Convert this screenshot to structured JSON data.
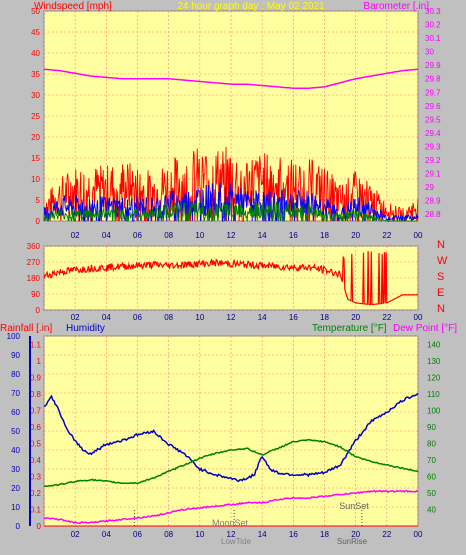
{
  "chart_data": [
    {
      "type": "line",
      "title": "24 hour graph day : May 02 2021",
      "left_axis_label": "Windspeed [mph]",
      "right_axis_label": "Barometer [.in]",
      "x_ticks": [
        "02",
        "04",
        "06",
        "08",
        "10",
        "12",
        "14",
        "16",
        "18",
        "20",
        "22",
        "00"
      ],
      "y_left_ticks": [
        "0",
        "5",
        "10",
        "15",
        "20",
        "25",
        "30",
        "35",
        "40",
        "45",
        "50"
      ],
      "y_left_lim": [
        0,
        50
      ],
      "y_right_ticks": [
        "28.8",
        "28.9",
        "29",
        "29.1",
        "29.2",
        "29.3",
        "29.4",
        "29.5",
        "29.6",
        "29.7",
        "29.8",
        "29.9",
        "30",
        "30.1",
        "30.2",
        "30.3"
      ],
      "y_right_lim": [
        28.75,
        30.3
      ],
      "grid": true,
      "series": [
        {
          "name": "Barometer",
          "axis": "right",
          "color": "#ff00ff",
          "x": [
            0,
            1,
            2,
            3,
            4,
            5,
            6,
            7,
            8,
            9,
            10,
            11,
            12,
            13,
            14,
            15,
            16,
            17,
            18,
            19,
            20,
            21,
            22,
            23,
            24
          ],
          "values": [
            29.87,
            29.86,
            29.84,
            29.82,
            29.81,
            29.8,
            29.8,
            29.8,
            29.8,
            29.79,
            29.78,
            29.77,
            29.76,
            29.76,
            29.75,
            29.74,
            29.73,
            29.73,
            29.74,
            29.77,
            29.8,
            29.82,
            29.84,
            29.86,
            29.87
          ]
        },
        {
          "name": "Gust",
          "axis": "left",
          "color": "#ff0000",
          "x": [
            0,
            1,
            2,
            3,
            4,
            5,
            6,
            7,
            8,
            9,
            10,
            11,
            12,
            13,
            14,
            15,
            16,
            17,
            18,
            19,
            20,
            21,
            22,
            23,
            24
          ],
          "values": [
            4,
            7,
            9,
            9,
            9,
            10,
            9,
            8,
            10,
            11,
            12,
            12,
            12,
            11,
            11,
            11,
            10,
            10,
            9,
            6,
            8,
            6,
            3,
            2,
            4
          ]
        },
        {
          "name": "Average",
          "axis": "left",
          "color": "#0000ff",
          "x": [
            0,
            1,
            2,
            3,
            4,
            5,
            6,
            7,
            8,
            9,
            10,
            11,
            12,
            13,
            14,
            15,
            16,
            17,
            18,
            19,
            20,
            21,
            22,
            23,
            24
          ],
          "values": [
            2,
            4,
            4,
            4,
            4,
            4,
            4,
            4,
            5,
            5,
            6,
            6,
            6,
            5,
            5,
            5,
            5,
            5,
            4,
            2,
            4,
            3,
            1,
            1,
            1
          ]
        },
        {
          "name": "Wind",
          "axis": "left",
          "color": "#008000",
          "x": [
            0,
            1,
            2,
            3,
            4,
            5,
            6,
            7,
            8,
            9,
            10,
            11,
            12,
            13,
            14,
            15,
            16,
            17,
            18,
            19,
            20,
            21,
            22,
            23,
            24
          ],
          "values": [
            1,
            2,
            2,
            2,
            2,
            2,
            2,
            2,
            3,
            3,
            3,
            3,
            3,
            3,
            3,
            3,
            3,
            3,
            2,
            1,
            2,
            1,
            0,
            0,
            0
          ]
        }
      ]
    },
    {
      "type": "line",
      "y_ticks": [
        "0",
        "90",
        "180",
        "270",
        "360"
      ],
      "y_lim": [
        0,
        360
      ],
      "right_labels": [
        "N",
        "W",
        "S",
        "E",
        "N"
      ],
      "x_ticks": [
        "02",
        "04",
        "06",
        "08",
        "10",
        "12",
        "14",
        "16",
        "18",
        "20",
        "22",
        "00"
      ],
      "grid": true,
      "series": [
        {
          "name": "Wind Direction",
          "color": "#ff0000",
          "x": [
            0,
            1,
            2,
            3,
            4,
            5,
            6,
            7,
            8,
            9,
            10,
            11,
            12,
            13,
            14,
            15,
            16,
            17,
            18,
            19,
            19.5,
            20,
            21,
            22,
            23,
            24
          ],
          "values": [
            190,
            215,
            225,
            235,
            240,
            245,
            250,
            255,
            250,
            255,
            260,
            265,
            260,
            255,
            250,
            245,
            240,
            240,
            225,
            200,
            60,
            40,
            30,
            40,
            85,
            85
          ]
        }
      ]
    },
    {
      "type": "line",
      "left_axis_labels": [
        "Rainfall [.in]",
        "Humidity"
      ],
      "right_axis_labels": [
        "Temperature [°F]",
        "Dew Point [°F]"
      ],
      "y_rain_ticks": [
        "0",
        "0.1",
        "0.2",
        "0.3",
        "0.4",
        "0.5",
        "0.6",
        "0.7",
        "0.8",
        "0.9",
        "1",
        "1.1"
      ],
      "y_hum_ticks": [
        "0",
        "10",
        "20",
        "30",
        "40",
        "50",
        "60",
        "70",
        "80",
        "90",
        "100"
      ],
      "y_hum_lim": [
        0,
        100
      ],
      "y_temp_ticks": [
        "40",
        "50",
        "60",
        "70",
        "80",
        "90",
        "100",
        "110",
        "120",
        "130",
        "140"
      ],
      "y_temp_lim": [
        30,
        145
      ],
      "x_ticks": [
        "02",
        "04",
        "06",
        "08",
        "10",
        "12",
        "14",
        "16",
        "18",
        "20",
        "22",
        "00"
      ],
      "grid": true,
      "annotations": [
        "MoonSet",
        "LowTide",
        "SunRise",
        "SunSet"
      ],
      "series": [
        {
          "name": "Humidity",
          "axis": "humidity",
          "color": "#0000c8",
          "x": [
            0,
            0.5,
            1,
            1.5,
            2,
            2.5,
            3,
            4,
            5,
            6,
            7,
            8,
            9,
            10,
            11,
            12,
            12.5,
            13,
            13.5,
            14,
            14.5,
            15,
            16,
            17,
            18,
            19,
            20,
            21,
            22,
            23,
            24
          ],
          "values": [
            63,
            68,
            60,
            50,
            45,
            40,
            38,
            43,
            45,
            48,
            50,
            43,
            38,
            30,
            27,
            25,
            24,
            25,
            27,
            37,
            30,
            28,
            27,
            27,
            28,
            32,
            45,
            55,
            60,
            66,
            70
          ]
        },
        {
          "name": "Temperature",
          "axis": "temperature",
          "color": "#008000",
          "x": [
            0,
            1,
            2,
            3,
            4,
            5,
            6,
            7,
            8,
            9,
            10,
            11,
            12,
            13,
            14,
            15,
            16,
            17,
            18,
            19,
            20,
            21,
            22,
            23,
            24
          ],
          "values": [
            54,
            55,
            57,
            58,
            57,
            56,
            56,
            59,
            63,
            67,
            71,
            74,
            76,
            77,
            73,
            77,
            81,
            82,
            81,
            78,
            72,
            69,
            67,
            65,
            63
          ]
        },
        {
          "name": "Dew Point",
          "axis": "temperature",
          "color": "#ff00ff",
          "x": [
            0,
            1,
            2,
            3,
            4,
            5,
            6,
            7,
            8,
            9,
            10,
            11,
            12,
            13,
            14,
            15,
            16,
            17,
            18,
            19,
            20,
            21,
            22,
            23,
            24
          ],
          "values": [
            35,
            34,
            32,
            32,
            33,
            34,
            35,
            36,
            38,
            40,
            41,
            42,
            43,
            44,
            44,
            46,
            47,
            47,
            48,
            49,
            50,
            51,
            51,
            51,
            51
          ]
        },
        {
          "name": "Rainfall",
          "axis": "rain",
          "color": "#ff0000",
          "x": [
            0,
            24
          ],
          "values": [
            0,
            0
          ]
        }
      ]
    }
  ],
  "colors": {
    "background": "#ffffa0",
    "frame": "#c0c0c0",
    "grid": "#ff8080"
  }
}
